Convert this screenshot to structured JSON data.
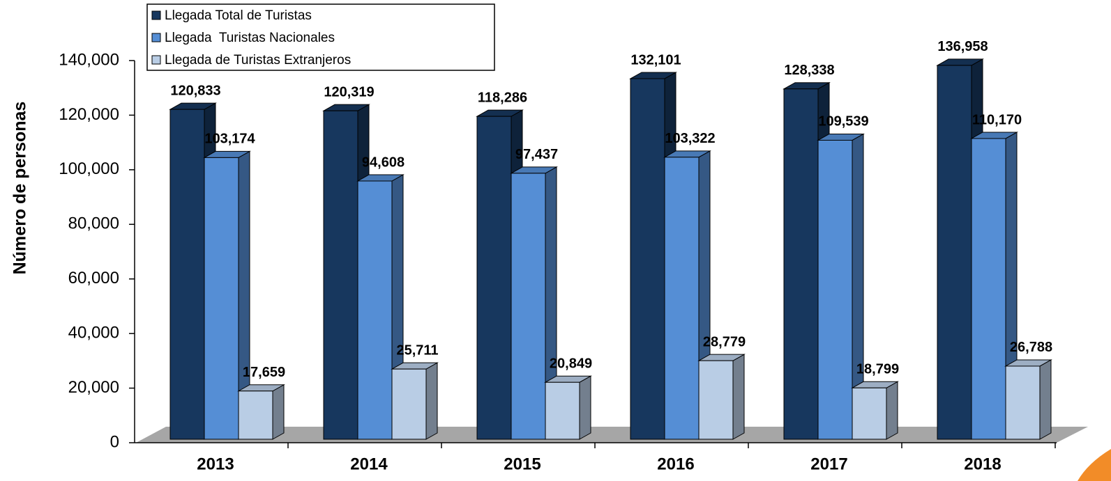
{
  "chart_data": {
    "type": "bar3d",
    "y_axis_label": "Número de personas",
    "categories": [
      "2013",
      "2014",
      "2015",
      "2016",
      "2017",
      "2018"
    ],
    "series": [
      {
        "name": "Llegada Total de Turistas",
        "color": "#17375e",
        "values": [
          120833,
          120319,
          118286,
          132101,
          128338,
          136958
        ],
        "value_labels": [
          "120,833",
          "120,319",
          "118,286",
          "132,101",
          "128,338",
          "136,958"
        ]
      },
      {
        "name": "Llegada  Turistas Nacionales",
        "color": "#558ed5",
        "values": [
          103174,
          94608,
          97437,
          103322,
          109539,
          110170
        ],
        "value_labels": [
          "103,174",
          "94,608",
          "97,437",
          "103,322",
          "109,539",
          "110,170"
        ]
      },
      {
        "name": "Llegada de Turistas Extranjeros",
        "color": "#b9cde5",
        "values": [
          17659,
          25711,
          20849,
          28779,
          18799,
          26788
        ],
        "value_labels": [
          "17,659",
          "25,711",
          "20,849",
          "28,779",
          "18,799",
          "26,788"
        ]
      }
    ],
    "ylim": [
      0,
      140000
    ],
    "yticks": [
      0,
      {
        "value": 20000,
        "label": "20,000"
      },
      {
        "value": 40000,
        "label": "40,000"
      },
      {
        "value": 60000,
        "label": "60,000"
      },
      {
        "value": 80000,
        "label": "80,000"
      },
      {
        "value": 100000,
        "label": "100,000"
      },
      {
        "value": 120000,
        "label": "120,000"
      },
      {
        "value": 140000,
        "label": "140,000"
      }
    ],
    "legend": "top-left"
  }
}
